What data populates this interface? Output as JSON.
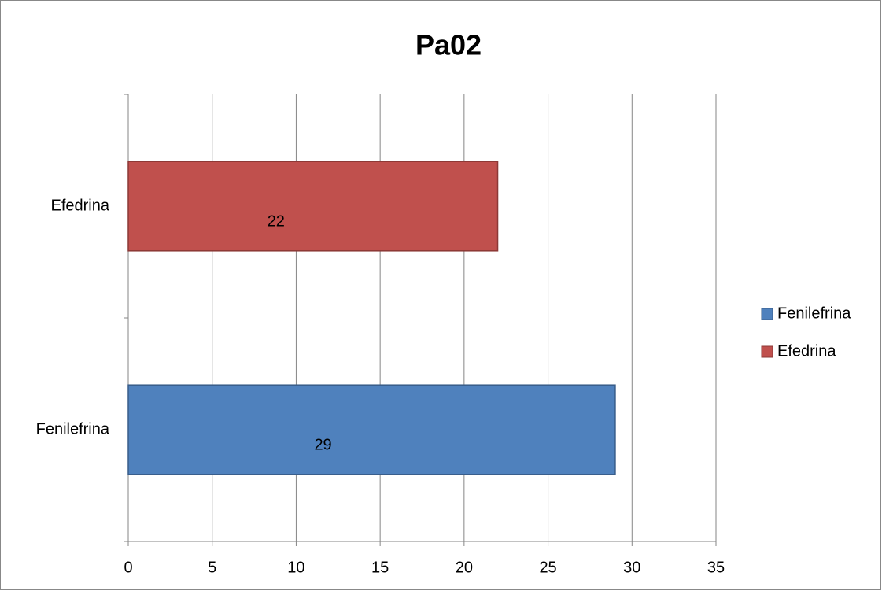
{
  "chart_data": {
    "type": "bar",
    "orientation": "horizontal",
    "title": "Pa02",
    "categories": [
      "Fenilefrina",
      "Efedrina"
    ],
    "series": [
      {
        "name": "Fenilefrina",
        "color": "#4f81bd",
        "values": [
          29,
          null
        ]
      },
      {
        "name": "Efedrina",
        "color": "#c0504d",
        "values": [
          null,
          22
        ]
      }
    ],
    "xlim": [
      0,
      35
    ],
    "xticks": [
      0,
      5,
      10,
      15,
      20,
      25,
      30,
      35
    ],
    "grid": true,
    "legend": "right",
    "data_labels": true
  }
}
